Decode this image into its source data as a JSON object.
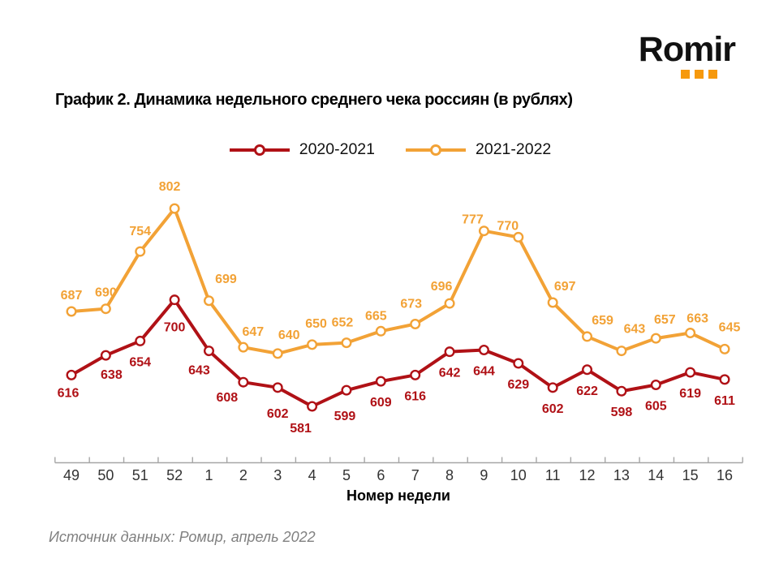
{
  "logo": {
    "text": "Romir",
    "dot_color": "#F6990D"
  },
  "source": "Источник данных: Ромир, апрель 2022",
  "chart_data": {
    "type": "line",
    "title": "График 2. Динамика недельного среднего чека россиян (в рублях)",
    "xlabel": "Номер недели",
    "x": [
      "49",
      "50",
      "51",
      "52",
      "1",
      "2",
      "3",
      "4",
      "5",
      "6",
      "7",
      "8",
      "9",
      "10",
      "11",
      "12",
      "13",
      "14",
      "15",
      "16"
    ],
    "series": [
      {
        "name": "2020-2021",
        "color": "#B01116",
        "label_placement": "below",
        "values": [
          616,
          638,
          654,
          700,
          643,
          608,
          602,
          581,
          599,
          609,
          616,
          642,
          644,
          629,
          602,
          622,
          598,
          605,
          619,
          611
        ]
      },
      {
        "name": "2021-2022",
        "color": "#F2A236",
        "label_placement": "above",
        "values": [
          687,
          690,
          754,
          802,
          699,
          647,
          640,
          650,
          652,
          665,
          673,
          696,
          777,
          770,
          697,
          659,
          643,
          657,
          663,
          645
        ]
      }
    ],
    "markers": "open-circle",
    "grid": false,
    "legend_position": "top-center",
    "axis_color": "#A6A6A6",
    "ylim": [
      520,
      830
    ]
  }
}
